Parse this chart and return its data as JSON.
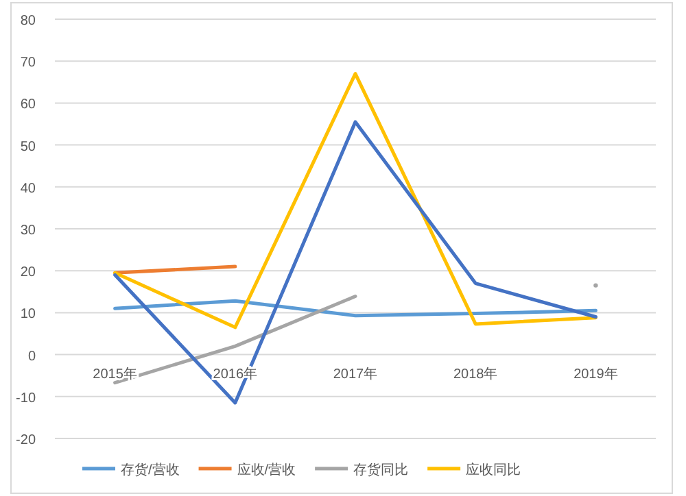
{
  "chart_data": {
    "type": "line",
    "categories": [
      "2015年",
      "2016年",
      "2017年",
      "2018年",
      "2019年"
    ],
    "series": [
      {
        "name": "存货/营收",
        "color": "#5b9bd5",
        "values": [
          11,
          12.8,
          9.3,
          9.8,
          10.5
        ]
      },
      {
        "name": "应收/营收",
        "color": "#ed7d31",
        "values": [
          19.5,
          21,
          null,
          null,
          null
        ]
      },
      {
        "name": "存货同比",
        "color": "#a5a5a5",
        "values": [
          -6.7,
          2,
          13.9,
          null,
          16.5
        ]
      },
      {
        "name": "应收同比",
        "color": "#ffc000",
        "values": [
          19.5,
          6.5,
          67,
          7.3,
          8.8
        ]
      },
      {
        "color": "#4472c4",
        "values": [
          19,
          -11.5,
          55.5,
          17,
          9
        ]
      }
    ],
    "ylim": [
      -20,
      80
    ],
    "yticks": [
      -20,
      -10,
      0,
      10,
      20,
      30,
      40,
      50,
      60,
      70,
      80
    ],
    "grid": "y",
    "legend": "bottom",
    "marker": "none"
  }
}
